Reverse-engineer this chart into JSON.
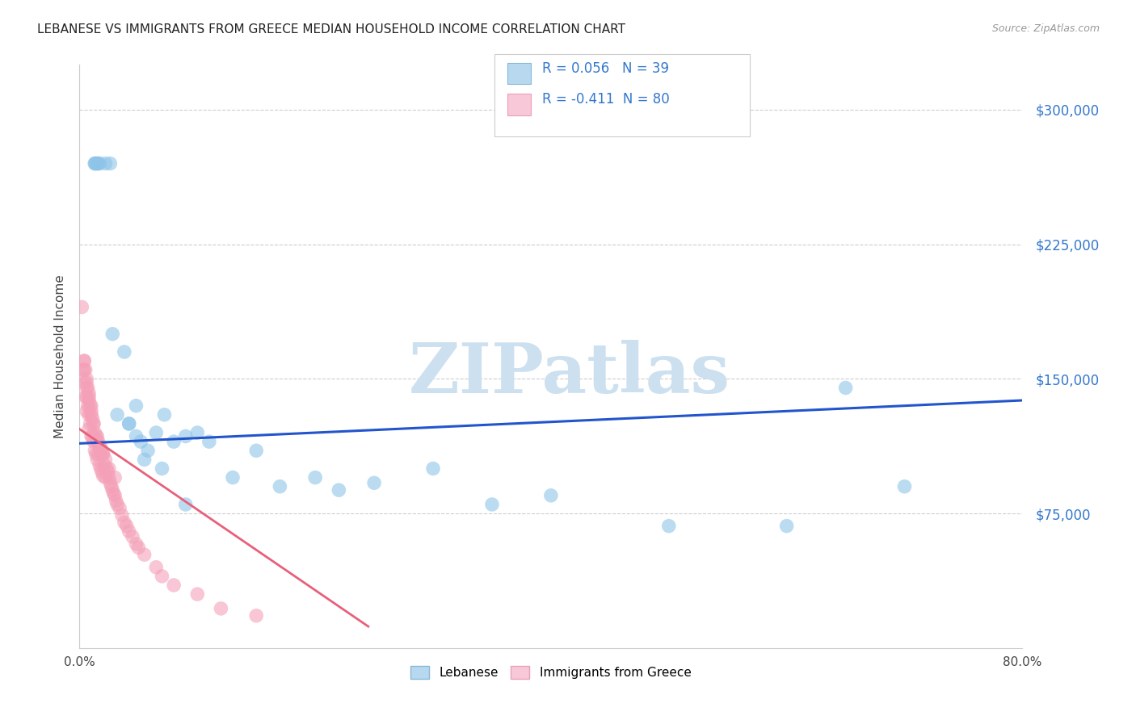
{
  "title": "LEBANESE VS IMMIGRANTS FROM GREECE MEDIAN HOUSEHOLD INCOME CORRELATION CHART",
  "source": "Source: ZipAtlas.com",
  "ylabel": "Median Household Income",
  "xlim": [
    0.0,
    0.8
  ],
  "ylim": [
    0,
    325000
  ],
  "yticks": [
    75000,
    150000,
    225000,
    300000
  ],
  "ytick_labels": [
    "$75,000",
    "$150,000",
    "$225,000",
    "$300,000"
  ],
  "xtick_positions": [
    0.0,
    0.8
  ],
  "xtick_labels": [
    "0.0%",
    "80.0%"
  ],
  "background_color": "#ffffff",
  "grid_color": "#c8c8c8",
  "series1_color": "#8ec4e8",
  "series2_color": "#f4a0b8",
  "trend1_color": "#2255cc",
  "trend2_color": "#e8607a",
  "legend_box1_color": "#b8d8f0",
  "legend_box2_color": "#f8c8d8",
  "r_text_color": "#3377cc",
  "yaxis_color": "#3377cc",
  "watermark_text": "ZIPatlas",
  "watermark_color": "#cce0f0",
  "trend1_x0": 0.0,
  "trend1_y0": 114000,
  "trend1_x1": 0.8,
  "trend1_y1": 138000,
  "trend2_x0": 0.0,
  "trend2_y0": 122000,
  "trend2_x1": 0.245,
  "trend2_y1": 12000,
  "series1_x": [
    0.013,
    0.014,
    0.016,
    0.022,
    0.026,
    0.028,
    0.032,
    0.038,
    0.042,
    0.048,
    0.052,
    0.058,
    0.065,
    0.072,
    0.08,
    0.09,
    0.1,
    0.11,
    0.13,
    0.15,
    0.17,
    0.2,
    0.22,
    0.25,
    0.3,
    0.35,
    0.4,
    0.5,
    0.6,
    0.65,
    0.7,
    0.013,
    0.015,
    0.017,
    0.042,
    0.048,
    0.055,
    0.07,
    0.09
  ],
  "series1_y": [
    270000,
    270000,
    270000,
    270000,
    270000,
    175000,
    130000,
    165000,
    125000,
    135000,
    115000,
    110000,
    120000,
    130000,
    115000,
    118000,
    120000,
    115000,
    95000,
    110000,
    90000,
    95000,
    88000,
    92000,
    100000,
    80000,
    85000,
    68000,
    68000,
    145000,
    90000,
    270000,
    270000,
    270000,
    125000,
    118000,
    105000,
    100000,
    80000
  ],
  "series2_x": [
    0.002,
    0.003,
    0.004,
    0.004,
    0.005,
    0.005,
    0.006,
    0.006,
    0.006,
    0.007,
    0.007,
    0.008,
    0.008,
    0.008,
    0.009,
    0.009,
    0.01,
    0.01,
    0.011,
    0.011,
    0.012,
    0.012,
    0.013,
    0.013,
    0.014,
    0.014,
    0.015,
    0.015,
    0.016,
    0.016,
    0.017,
    0.017,
    0.018,
    0.018,
    0.019,
    0.019,
    0.02,
    0.02,
    0.021,
    0.022,
    0.022,
    0.023,
    0.024,
    0.025,
    0.026,
    0.027,
    0.028,
    0.029,
    0.03,
    0.031,
    0.032,
    0.034,
    0.036,
    0.038,
    0.04,
    0.042,
    0.045,
    0.048,
    0.05,
    0.055,
    0.065,
    0.07,
    0.08,
    0.1,
    0.12,
    0.15,
    0.004,
    0.006,
    0.008,
    0.01,
    0.012,
    0.015,
    0.018,
    0.02,
    0.025,
    0.03,
    0.004,
    0.006,
    0.008,
    0.01
  ],
  "series2_y": [
    190000,
    155000,
    160000,
    148000,
    155000,
    140000,
    148000,
    140000,
    132000,
    145000,
    135000,
    140000,
    130000,
    122000,
    135000,
    125000,
    130000,
    118000,
    128000,
    118000,
    125000,
    115000,
    120000,
    110000,
    118000,
    108000,
    115000,
    105000,
    115000,
    108000,
    112000,
    102000,
    110000,
    100000,
    108000,
    98000,
    108000,
    96000,
    102000,
    105000,
    95000,
    100000,
    98000,
    95000,
    92000,
    90000,
    88000,
    86000,
    85000,
    82000,
    80000,
    78000,
    74000,
    70000,
    68000,
    65000,
    62000,
    58000,
    56000,
    52000,
    45000,
    40000,
    35000,
    30000,
    22000,
    18000,
    155000,
    145000,
    138000,
    132000,
    125000,
    118000,
    112000,
    108000,
    100000,
    95000,
    160000,
    150000,
    142000,
    135000
  ]
}
